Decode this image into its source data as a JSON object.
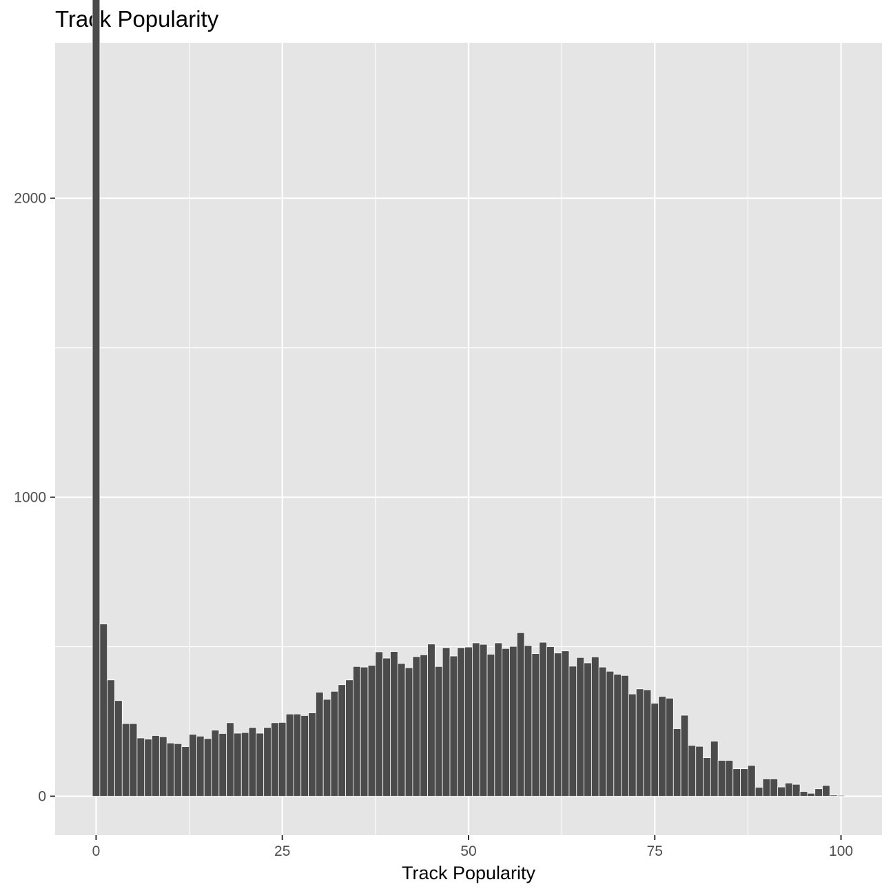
{
  "chart_data": {
    "type": "bar",
    "title": "Track Popularity",
    "xlabel": "Track Popularity",
    "ylabel": "",
    "xlim": [
      -5.5,
      105.5
    ],
    "ylim": [
      -130,
      2520
    ],
    "x_ticks": [
      0,
      25,
      50,
      75,
      100
    ],
    "y_ticks": [
      0,
      1000,
      2000
    ],
    "x_tick_labels": [
      "0",
      "25",
      "50",
      "75",
      "100"
    ],
    "y_tick_labels": [
      "0",
      "1000",
      "2000"
    ],
    "grid": true,
    "x": [
      0,
      1,
      2,
      3,
      4,
      5,
      6,
      7,
      8,
      9,
      10,
      11,
      12,
      13,
      14,
      15,
      16,
      17,
      18,
      19,
      20,
      21,
      22,
      23,
      24,
      25,
      26,
      27,
      28,
      29,
      30,
      31,
      32,
      33,
      34,
      35,
      36,
      37,
      38,
      39,
      40,
      41,
      42,
      43,
      44,
      45,
      46,
      47,
      48,
      49,
      50,
      51,
      52,
      53,
      54,
      55,
      56,
      57,
      58,
      59,
      60,
      61,
      62,
      63,
      64,
      65,
      66,
      67,
      68,
      69,
      70,
      71,
      72,
      73,
      74,
      75,
      76,
      77,
      78,
      79,
      80,
      81,
      82,
      83,
      84,
      85,
      86,
      87,
      88,
      89,
      90,
      91,
      92,
      93,
      94,
      95,
      96,
      97,
      98,
      99,
      100
    ],
    "values": [
      2701,
      576,
      389,
      320,
      243,
      243,
      195,
      191,
      203,
      199,
      178,
      176,
      166,
      207,
      201,
      193,
      221,
      210,
      246,
      211,
      213,
      230,
      211,
      230,
      246,
      247,
      275,
      275,
      270,
      279,
      348,
      324,
      351,
      373,
      389,
      434,
      432,
      438,
      483,
      462,
      484,
      444,
      430,
      467,
      473,
      509,
      434,
      497,
      469,
      497,
      499,
      513,
      508,
      475,
      513,
      494,
      501,
      547,
      504,
      477,
      515,
      500,
      479,
      486,
      435,
      464,
      446,
      466,
      432,
      418,
      408,
      404,
      342,
      359,
      356,
      311,
      334,
      328,
      226,
      271,
      170,
      167,
      129,
      184,
      120,
      120,
      92,
      92,
      103,
      30,
      58,
      58,
      31,
      44,
      40,
      16,
      10,
      25,
      36,
      4,
      3
    ],
    "colors": {
      "panel": "#e5e5e5",
      "grid": "#ffffff",
      "bar": "#4b4b4b",
      "bar_outline": "#ffffff",
      "tick": "#333333"
    }
  }
}
